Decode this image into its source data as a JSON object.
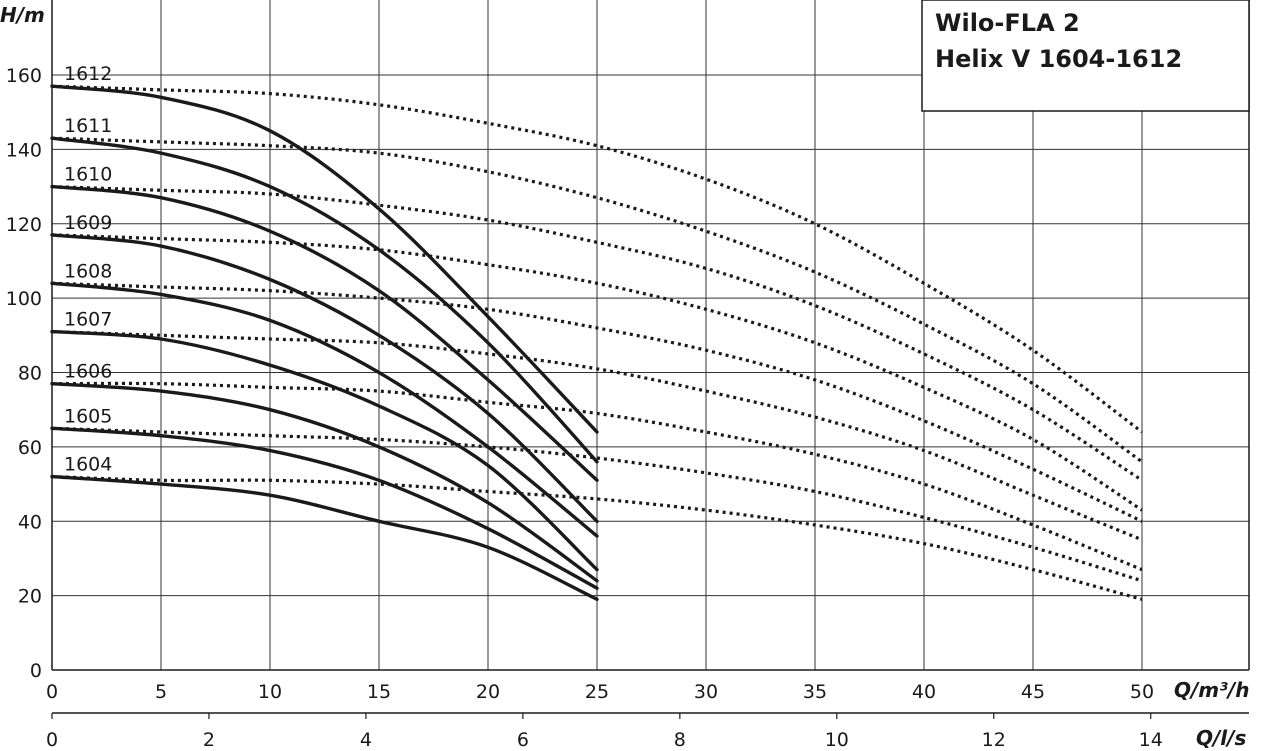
{
  "chart_data": {
    "type": "line",
    "title_lines": [
      "Wilo-FLA 2",
      "Helix V 1604-1612"
    ],
    "ylabel": "H/m",
    "xlabel": "Q/m³/h",
    "x2label": "Q/l/s",
    "xlim": [
      0,
      55
    ],
    "ylim": [
      0,
      160
    ],
    "xticks": [
      0,
      5,
      10,
      15,
      20,
      25,
      30,
      35,
      40,
      45,
      50
    ],
    "yticks": [
      0,
      20,
      40,
      60,
      80,
      100,
      120,
      140,
      160
    ],
    "x2ticks": [
      0,
      2,
      4,
      6,
      8,
      10,
      12,
      14
    ],
    "grid": true,
    "series": [
      {
        "name": "1612",
        "x": [
          0,
          5,
          10,
          15,
          20,
          25
        ],
        "y": [
          157,
          154,
          145,
          124,
          95,
          64
        ]
      },
      {
        "name": "1611",
        "x": [
          0,
          5,
          10,
          15,
          20,
          25
        ],
        "y": [
          143,
          139,
          130,
          113,
          88,
          56
        ]
      },
      {
        "name": "1610",
        "x": [
          0,
          5,
          10,
          15,
          20,
          25
        ],
        "y": [
          130,
          127,
          118,
          102,
          78,
          51
        ]
      },
      {
        "name": "1609",
        "x": [
          0,
          5,
          10,
          15,
          20,
          25
        ],
        "y": [
          117,
          114,
          105,
          90,
          69,
          40
        ]
      },
      {
        "name": "1608",
        "x": [
          0,
          5,
          10,
          15,
          20,
          25
        ],
        "y": [
          104,
          101,
          94,
          80,
          60,
          36
        ]
      },
      {
        "name": "1607",
        "x": [
          0,
          5,
          10,
          15,
          20,
          25
        ],
        "y": [
          91,
          89,
          82,
          71,
          55,
          27
        ]
      },
      {
        "name": "1606",
        "x": [
          0,
          5,
          10,
          15,
          20,
          25
        ],
        "y": [
          77,
          75,
          70,
          60,
          45,
          24
        ]
      },
      {
        "name": "1605",
        "x": [
          0,
          5,
          10,
          15,
          20,
          25
        ],
        "y": [
          65,
          63,
          59,
          51,
          38,
          22
        ]
      },
      {
        "name": "1604",
        "x": [
          0,
          5,
          10,
          15,
          20,
          25
        ],
        "y": [
          52,
          50,
          47,
          40,
          33,
          19
        ]
      }
    ],
    "dotted_series": [
      {
        "name": "1612",
        "x": [
          0,
          5,
          10,
          15,
          20,
          25,
          30,
          35,
          40,
          45,
          50
        ],
        "y": [
          157,
          156,
          155,
          152,
          147,
          141,
          132,
          120,
          104,
          86,
          64
        ]
      },
      {
        "name": "1611",
        "x": [
          0,
          5,
          10,
          15,
          20,
          25,
          30,
          35,
          40,
          45,
          50
        ],
        "y": [
          143,
          142,
          141,
          139,
          134,
          127,
          118,
          107,
          93,
          77,
          56
        ]
      },
      {
        "name": "1610",
        "x": [
          0,
          5,
          10,
          15,
          20,
          25,
          30,
          35,
          40,
          45,
          50
        ],
        "y": [
          130,
          129,
          128,
          125,
          121,
          115,
          108,
          98,
          85,
          70,
          51
        ]
      },
      {
        "name": "1609",
        "x": [
          0,
          5,
          10,
          15,
          20,
          25,
          30,
          35,
          40,
          45,
          50
        ],
        "y": [
          117,
          116,
          115,
          113,
          109,
          104,
          97,
          88,
          76,
          62,
          43
        ]
      },
      {
        "name": "1608",
        "x": [
          0,
          5,
          10,
          15,
          20,
          25,
          30,
          35,
          40,
          45,
          50
        ],
        "y": [
          104,
          103,
          102,
          100,
          97,
          92,
          86,
          78,
          67,
          54,
          40
        ]
      },
      {
        "name": "1607",
        "x": [
          0,
          5,
          10,
          15,
          20,
          25,
          30,
          35,
          40,
          45,
          50
        ],
        "y": [
          91,
          90,
          89,
          88,
          85,
          81,
          75,
          68,
          59,
          47,
          35
        ]
      },
      {
        "name": "1606",
        "x": [
          0,
          5,
          10,
          15,
          20,
          25,
          30,
          35,
          40,
          45,
          50
        ],
        "y": [
          77,
          77,
          76,
          75,
          72,
          69,
          64,
          58,
          50,
          39,
          27
        ]
      },
      {
        "name": "1605",
        "x": [
          0,
          5,
          10,
          15,
          20,
          25,
          30,
          35,
          40,
          45,
          50
        ],
        "y": [
          65,
          64,
          63,
          62,
          60,
          57,
          53,
          48,
          41,
          33,
          24
        ]
      },
      {
        "name": "1604",
        "x": [
          0,
          5,
          10,
          15,
          20,
          25,
          30,
          35,
          40,
          45,
          50
        ],
        "y": [
          52,
          51,
          51,
          50,
          48,
          46,
          43,
          39,
          34,
          27,
          19
        ]
      }
    ],
    "line_color": "#1a1a1a"
  }
}
